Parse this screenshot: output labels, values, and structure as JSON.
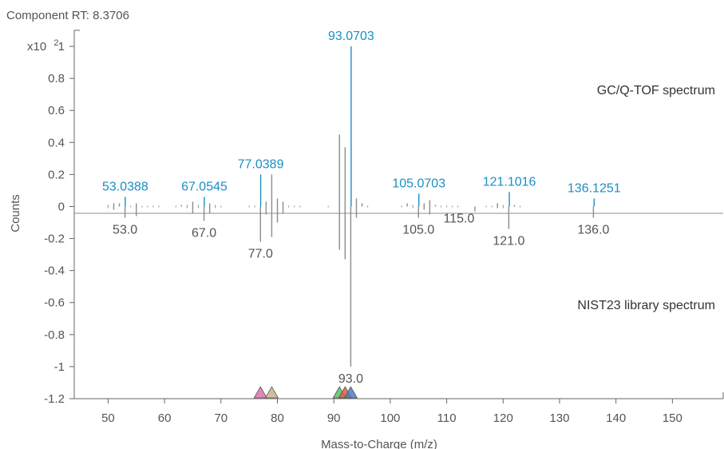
{
  "chart_data": {
    "type": "bar",
    "title": "Component RT: 8.3706",
    "multiplier": "x10",
    "multiplier_exp": "2",
    "xlabel": "Mass-to-Charge (m/z)",
    "ylabel": "Counts",
    "xlim": [
      44,
      159
    ],
    "ylim": [
      -1.2,
      1.1
    ],
    "x_ticks": [
      50,
      60,
      70,
      80,
      90,
      100,
      110,
      120,
      130,
      140,
      150
    ],
    "y_ticks": [
      1,
      0.8,
      0.6,
      0.4,
      0.2,
      0,
      -0.2,
      -0.4,
      -0.6,
      -0.8,
      -1,
      -1.2
    ],
    "y_tick_labels": [
      "1",
      "0.8",
      "0.6",
      "0.4",
      "0.2",
      "0",
      "-0.2",
      "-0.4",
      "-0.6",
      "-0.8",
      "-1",
      "-1.2"
    ],
    "grid": false,
    "colors": {
      "measured": "#1a8fc4",
      "library": "#8c8c8c",
      "minor": "#8c8c8c",
      "axis": "#666666",
      "text": "#555555"
    },
    "series": [
      {
        "name": "GC/Q-TOF spectrum",
        "peaks": [
          {
            "x": 51.0,
            "y": 0.02
          },
          {
            "x": 52.0,
            "y": 0.02
          },
          {
            "x": 53.0388,
            "y": 0.06,
            "label": "53.0388"
          },
          {
            "x": 55.0,
            "y": 0.02
          },
          {
            "x": 63.0,
            "y": 0.01
          },
          {
            "x": 65.0,
            "y": 0.03
          },
          {
            "x": 67.0545,
            "y": 0.06,
            "label": "67.0545"
          },
          {
            "x": 68.0,
            "y": 0.02
          },
          {
            "x": 77.0389,
            "y": 0.2,
            "label": "77.0389"
          },
          {
            "x": 78.0,
            "y": 0.03
          },
          {
            "x": 79.0,
            "y": 0.2
          },
          {
            "x": 80.0,
            "y": 0.05
          },
          {
            "x": 81.0,
            "y": 0.03
          },
          {
            "x": 91.0,
            "y": 0.45
          },
          {
            "x": 92.0,
            "y": 0.37
          },
          {
            "x": 93.0703,
            "y": 1.0,
            "label": "93.0703"
          },
          {
            "x": 94.0,
            "y": 0.05
          },
          {
            "x": 95.0,
            "y": 0.02
          },
          {
            "x": 103.0,
            "y": 0.02
          },
          {
            "x": 105.0703,
            "y": 0.08,
            "label": "105.0703"
          },
          {
            "x": 106.0,
            "y": 0.02
          },
          {
            "x": 107.0,
            "y": 0.04
          },
          {
            "x": 108.0,
            "y": 0.01
          },
          {
            "x": 119.0,
            "y": 0.02
          },
          {
            "x": 121.1016,
            "y": 0.09,
            "label": "121.1016"
          },
          {
            "x": 122.0,
            "y": 0.01
          },
          {
            "x": 136.1251,
            "y": 0.05,
            "label": "136.1251"
          }
        ]
      },
      {
        "name": "NIST23 library spectrum",
        "peaks": [
          {
            "x": 51.0,
            "y": -0.02
          },
          {
            "x": 53.0,
            "y": -0.07,
            "label": "53.0"
          },
          {
            "x": 55.0,
            "y": -0.06
          },
          {
            "x": 65.0,
            "y": -0.04
          },
          {
            "x": 67.0,
            "y": -0.09,
            "label": "67.0"
          },
          {
            "x": 68.0,
            "y": -0.04
          },
          {
            "x": 77.0,
            "y": -0.22,
            "label": "77.0"
          },
          {
            "x": 78.0,
            "y": -0.05
          },
          {
            "x": 79.0,
            "y": -0.19
          },
          {
            "x": 80.0,
            "y": -0.1
          },
          {
            "x": 81.0,
            "y": -0.04
          },
          {
            "x": 91.0,
            "y": -0.27
          },
          {
            "x": 92.0,
            "y": -0.33
          },
          {
            "x": 93.0,
            "y": -1.0,
            "label": "93.0"
          },
          {
            "x": 94.0,
            "y": -0.07
          },
          {
            "x": 105.0,
            "y": -0.07,
            "label": "105.0"
          },
          {
            "x": 106.0,
            "y": -0.02
          },
          {
            "x": 107.0,
            "y": -0.05
          },
          {
            "x": 115.0,
            "y": -0.03,
            "label": "115.0"
          },
          {
            "x": 119.0,
            "y": -0.01
          },
          {
            "x": 121.0,
            "y": -0.14,
            "label": "121.0"
          },
          {
            "x": 136.0,
            "y": -0.07,
            "label": "136.0"
          }
        ]
      }
    ],
    "annotations": [
      {
        "text": "GC/Q-TOF spectrum",
        "x": 158,
        "y": 0.7,
        "align": "right"
      },
      {
        "text": "NIST23 library spectrum",
        "x": 158,
        "y": -0.64,
        "align": "right"
      }
    ],
    "markers": [
      {
        "x": 77.0,
        "color": "#e070b0"
      },
      {
        "x": 79.0,
        "color": "#c9b48a"
      },
      {
        "x": 91.0,
        "color": "#5bbf6a"
      },
      {
        "x": 92.0,
        "color": "#e0603a"
      },
      {
        "x": 93.0,
        "color": "#4a7fc4"
      }
    ],
    "minor_peaks": [
      {
        "x": 50.0,
        "y": 0.01
      },
      {
        "x": 54.0,
        "y": 0.005
      },
      {
        "x": 56.0,
        "y": 0.005
      },
      {
        "x": 57.0,
        "y": 0.005
      },
      {
        "x": 58.0,
        "y": 0.005
      },
      {
        "x": 59.0,
        "y": 0.005
      },
      {
        "x": 62.0,
        "y": 0.005
      },
      {
        "x": 64.0,
        "y": 0.01
      },
      {
        "x": 66.0,
        "y": 0.01
      },
      {
        "x": 69.0,
        "y": 0.01
      },
      {
        "x": 70.0,
        "y": 0.005
      },
      {
        "x": 75.0,
        "y": 0.005
      },
      {
        "x": 76.0,
        "y": 0.005
      },
      {
        "x": 82.0,
        "y": 0.005
      },
      {
        "x": 83.0,
        "y": 0.005
      },
      {
        "x": 84.0,
        "y": 0.005
      },
      {
        "x": 89.0,
        "y": 0.005
      },
      {
        "x": 96.0,
        "y": 0.005
      },
      {
        "x": 102.0,
        "y": 0.005
      },
      {
        "x": 104.0,
        "y": 0.01
      },
      {
        "x": 109.0,
        "y": 0.005
      },
      {
        "x": 110.0,
        "y": 0.005
      },
      {
        "x": 111.0,
        "y": 0.005
      },
      {
        "x": 112.0,
        "y": 0.005
      },
      {
        "x": 117.0,
        "y": 0.005
      },
      {
        "x": 118.0,
        "y": 0.005
      },
      {
        "x": 120.0,
        "y": 0.01
      },
      {
        "x": 123.0,
        "y": 0.005
      }
    ]
  }
}
